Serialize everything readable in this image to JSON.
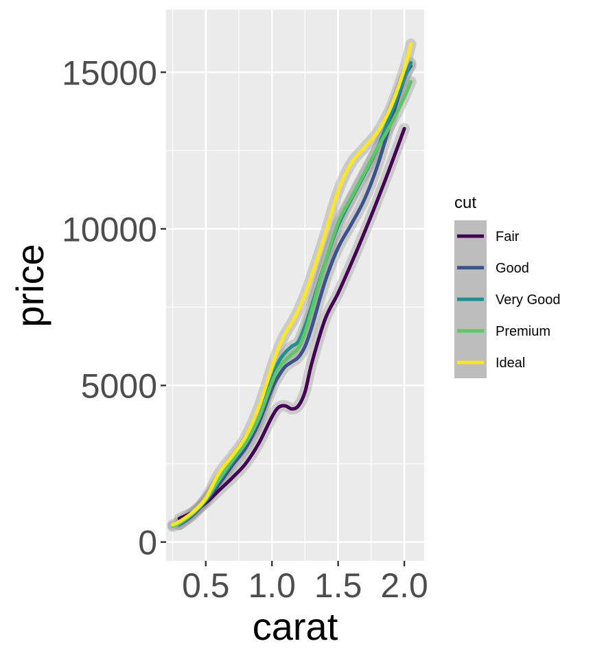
{
  "chart_data": {
    "type": "line",
    "xlabel": "carat",
    "ylabel": "price",
    "xlim": [
      0.2,
      2.15
    ],
    "ylim": [
      -600,
      17000
    ],
    "x_ticks": [
      0.5,
      1.0,
      1.5,
      2.0
    ],
    "x_tick_labels": [
      "0.5",
      "1.0",
      "1.5",
      "2.0"
    ],
    "y_ticks": [
      0,
      5000,
      10000,
      15000
    ],
    "y_tick_labels": [
      "0",
      "5000",
      "10000",
      "15000"
    ],
    "grid": true,
    "confidence_band": true,
    "legend": {
      "title": "cut",
      "position": "right"
    },
    "series": [
      {
        "name": "Fair",
        "color": "#440154",
        "x": [
          0.3,
          0.4,
          0.5,
          0.6,
          0.7,
          0.8,
          0.9,
          1.0,
          1.05,
          1.1,
          1.15,
          1.2,
          1.25,
          1.3,
          1.4,
          1.5,
          1.6,
          1.7,
          1.8,
          1.9,
          2.0
        ],
        "y": [
          750,
          950,
          1250,
          1650,
          2050,
          2500,
          3150,
          4000,
          4300,
          4350,
          4250,
          4350,
          4800,
          5700,
          7100,
          7950,
          8900,
          9900,
          10950,
          12050,
          13200
        ]
      },
      {
        "name": "Good",
        "color": "#3b528b",
        "x": [
          0.3,
          0.4,
          0.5,
          0.6,
          0.7,
          0.8,
          0.9,
          1.0,
          1.05,
          1.1,
          1.15,
          1.2,
          1.25,
          1.3,
          1.4,
          1.5,
          1.6,
          1.7,
          1.8,
          1.9,
          2.0,
          2.05
        ],
        "y": [
          550,
          850,
          1300,
          1850,
          2450,
          3000,
          3800,
          4900,
          5300,
          5600,
          5750,
          5900,
          6250,
          6850,
          8300,
          9400,
          10150,
          10950,
          12050,
          13450,
          14800,
          15200
        ]
      },
      {
        "name": "Very Good",
        "color": "#21908d",
        "x": [
          0.3,
          0.4,
          0.5,
          0.6,
          0.7,
          0.8,
          0.9,
          1.0,
          1.05,
          1.1,
          1.15,
          1.2,
          1.25,
          1.3,
          1.4,
          1.5,
          1.6,
          1.7,
          1.8,
          1.9,
          2.0,
          2.05
        ],
        "y": [
          550,
          900,
          1350,
          1950,
          2550,
          3150,
          3950,
          5200,
          5750,
          6050,
          6250,
          6400,
          6900,
          7550,
          8900,
          10100,
          10950,
          11750,
          12600,
          13700,
          14800,
          15300
        ]
      },
      {
        "name": "Premium",
        "color": "#5dc863",
        "x": [
          0.25,
          0.3,
          0.4,
          0.5,
          0.6,
          0.7,
          0.8,
          0.9,
          1.0,
          1.05,
          1.1,
          1.15,
          1.2,
          1.25,
          1.3,
          1.4,
          1.5,
          1.6,
          1.7,
          1.8,
          1.9,
          2.0,
          2.05
        ],
        "y": [
          500,
          600,
          900,
          1350,
          2000,
          2600,
          3150,
          3950,
          5100,
          5550,
          5800,
          6000,
          6200,
          6700,
          7400,
          8900,
          10200,
          11000,
          11800,
          12600,
          13350,
          14200,
          14700
        ]
      },
      {
        "name": "Ideal",
        "color": "#fde725",
        "x": [
          0.25,
          0.3,
          0.4,
          0.5,
          0.6,
          0.7,
          0.8,
          0.9,
          1.0,
          1.05,
          1.1,
          1.15,
          1.2,
          1.25,
          1.3,
          1.4,
          1.5,
          1.6,
          1.7,
          1.8,
          1.9,
          2.0,
          2.05
        ],
        "y": [
          550,
          650,
          950,
          1400,
          2200,
          2750,
          3350,
          4300,
          5600,
          6200,
          6650,
          7000,
          7400,
          7900,
          8500,
          9800,
          11200,
          12100,
          12600,
          13100,
          13900,
          15100,
          15900
        ]
      }
    ]
  }
}
